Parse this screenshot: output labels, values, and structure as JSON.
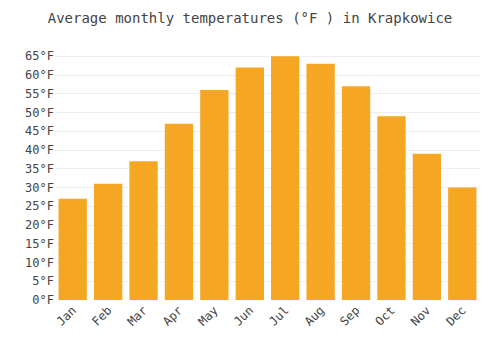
{
  "chart_data": {
    "type": "bar",
    "title": "Average monthly temperatures (°F ) in Krapkowice",
    "categories": [
      "Jan",
      "Feb",
      "Mar",
      "Apr",
      "May",
      "Jun",
      "Jul",
      "Aug",
      "Sep",
      "Oct",
      "Nov",
      "Dec"
    ],
    "values": [
      27,
      31,
      37,
      47,
      56,
      62,
      65,
      63,
      57,
      49,
      39,
      30
    ],
    "color": "#F5A623",
    "ylim": [
      0,
      68
    ],
    "yticks": [
      {
        "value": 0,
        "label": "0°F"
      },
      {
        "value": 5,
        "label": "5°F"
      },
      {
        "value": 10,
        "label": "10°F"
      },
      {
        "value": 15,
        "label": "15°F"
      },
      {
        "value": 20,
        "label": "20°F"
      },
      {
        "value": 25,
        "label": "25°F"
      },
      {
        "value": 30,
        "label": "30°F"
      },
      {
        "value": 35,
        "label": "35°F"
      },
      {
        "value": 40,
        "label": "40°F"
      },
      {
        "value": 45,
        "label": "45°F"
      },
      {
        "value": 50,
        "label": "50°F"
      },
      {
        "value": 55,
        "label": "55°F"
      },
      {
        "value": 60,
        "label": "60°F"
      },
      {
        "value": 65,
        "label": "65°F"
      }
    ],
    "grid": true
  }
}
